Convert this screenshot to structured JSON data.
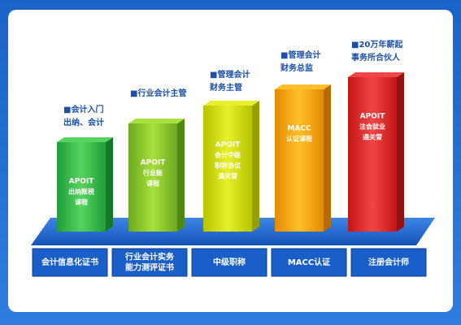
{
  "steps": [
    {
      "top_label": [
        "■会计入门",
        "出纳、会计"
      ],
      "bar_text": [
        "APOIT",
        "出纳账税",
        "课程"
      ],
      "bottom_label": [
        "会计信息化证书"
      ]
    },
    {
      "top_label": [
        "■行业会计主管"
      ],
      "bar_text": [
        "APOIT",
        "行业账",
        "课程"
      ],
      "bottom_label": [
        "行业会计实务",
        "能力测评证书"
      ]
    },
    {
      "top_label": [
        "■管理会计",
        "财务主管"
      ],
      "bar_text": [
        "APOIT",
        "会计中级",
        "职称协议",
        "通关营"
      ],
      "bottom_label": [
        "中级职称"
      ]
    },
    {
      "top_label": [
        "■管理会计",
        "财务总监"
      ],
      "bar_text": [
        "MACC",
        "认证课程"
      ],
      "bottom_label": [
        "MACC认证"
      ]
    },
    {
      "top_label": [
        "■20万年薪起",
        "事务所合伙人"
      ],
      "bar_text": [
        "APOIT",
        "注会就业",
        "通关营"
      ],
      "bottom_label": [
        "注册会计师"
      ]
    }
  ]
}
